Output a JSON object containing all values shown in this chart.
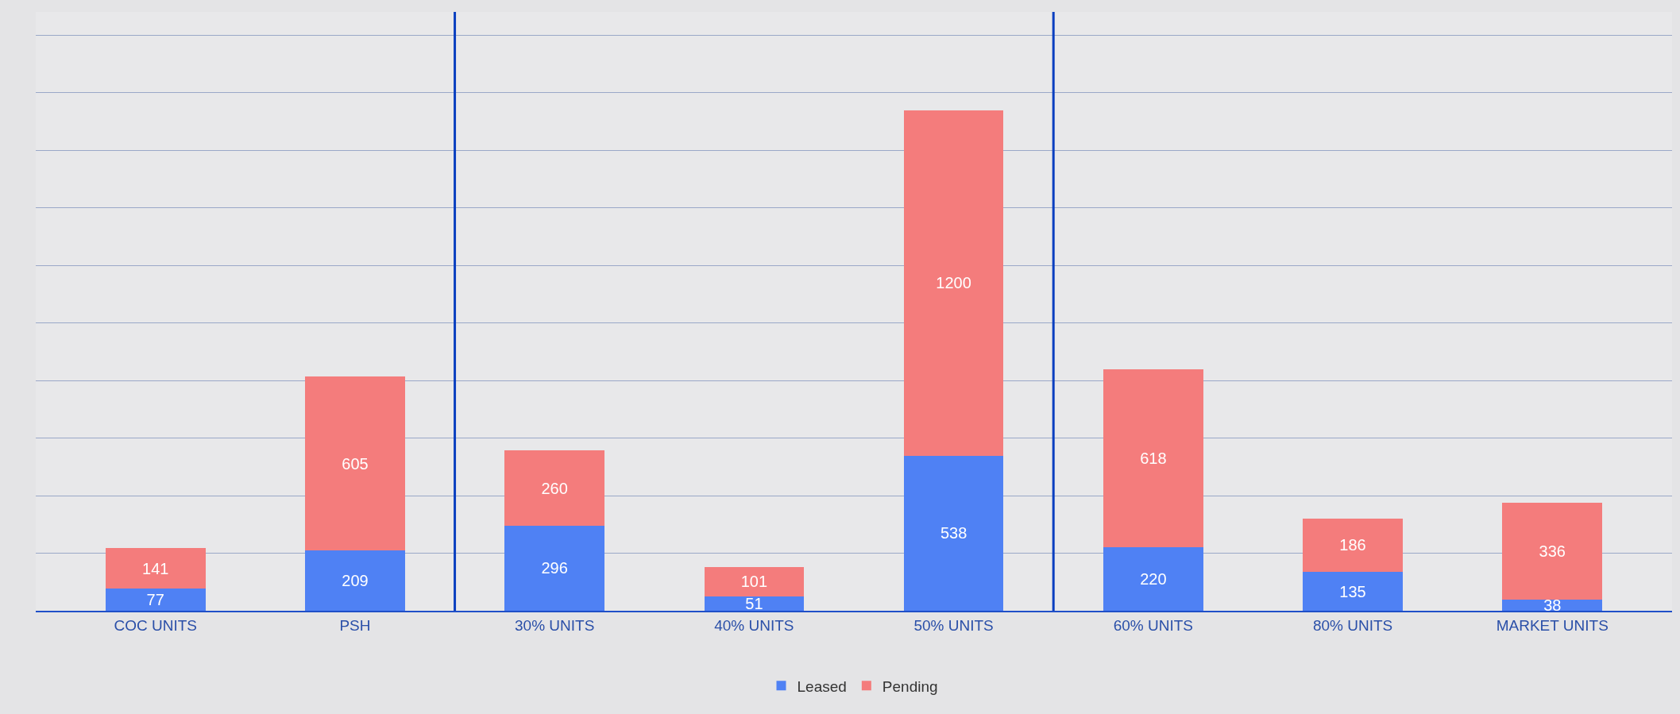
{
  "chart_data": {
    "type": "bar",
    "stacked": true,
    "data_labels": true,
    "categories": [
      "COC UNITS",
      "PSH",
      "30% UNITS",
      "40% UNITS",
      "50% UNITS",
      "60% UNITS",
      "80% UNITS",
      "MARKET UNITS"
    ],
    "series": [
      {
        "name": "Leased",
        "color": "#4f81f4",
        "values": [
          77,
          209,
          296,
          51,
          538,
          220,
          135,
          38
        ]
      },
      {
        "name": "Pending",
        "color": "#f47c7c",
        "values": [
          141,
          605,
          260,
          101,
          1200,
          618,
          186,
          336
        ]
      }
    ],
    "ylim": [
      0,
      2080
    ],
    "yticks": [
      {
        "value": 0,
        "label": null
      },
      {
        "value": 200,
        "label": null
      },
      {
        "value": 400,
        "label": null
      },
      {
        "value": 600,
        "label": null
      },
      {
        "value": 800,
        "label": null
      },
      {
        "value": 1000,
        "label": null
      },
      {
        "value": 1200,
        "label": null
      },
      {
        "value": 1400,
        "label": null
      },
      {
        "value": 1600,
        "label": null
      },
      {
        "value": 1800,
        "label": null
      },
      {
        "value": 2000,
        "label": null
      }
    ],
    "grid": "y",
    "legend": "bottom",
    "tick_labels": "x"
  }
}
